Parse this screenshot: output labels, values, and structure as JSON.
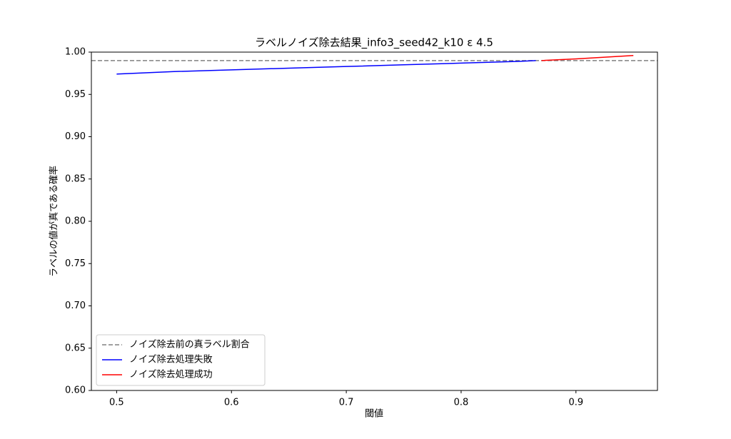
{
  "chart_data": {
    "type": "line",
    "title": "ラベルノイズ除去結果_info3_seed42_k10 ε 4.5",
    "xlabel": "閾値",
    "ylabel": "ラベルの値が真である確率",
    "x": [
      0.5,
      0.55,
      0.6,
      0.65,
      0.7,
      0.75,
      0.8,
      0.85,
      0.865,
      0.87,
      0.9,
      0.95
    ],
    "series": [
      {
        "name": "ノイズ除去処理失敗",
        "color": "#0000ff",
        "values": [
          0.974,
          0.977,
          0.979,
          0.981,
          0.983,
          0.985,
          0.987,
          0.989,
          0.99,
          null,
          null,
          null
        ]
      },
      {
        "name": "ノイズ除去処理成功",
        "color": "#ff0000",
        "values": [
          null,
          null,
          null,
          null,
          null,
          null,
          null,
          null,
          null,
          0.99,
          0.992,
          0.996
        ]
      }
    ],
    "reference_lines": [
      {
        "name": "ノイズ除去前の真ラベル割合",
        "value": 0.99,
        "color": "#808080",
        "style": "dashed"
      }
    ],
    "xlim": [
      0.478,
      0.971
    ],
    "ylim": [
      0.6,
      1.0
    ],
    "xticks": [
      0.5,
      0.6,
      0.7,
      0.8,
      0.9
    ],
    "yticks": [
      {
        "value": 0.6,
        "label": "0.60"
      },
      {
        "value": 0.65,
        "label": "0.65"
      },
      {
        "value": 0.7,
        "label": "0.70"
      },
      {
        "value": 0.75,
        "label": "0.75"
      },
      {
        "value": 0.8,
        "label": "0.80"
      },
      {
        "value": 0.85,
        "label": "0.85"
      },
      {
        "value": 0.9,
        "label": "0.90"
      },
      {
        "value": 0.95,
        "label": "0.95"
      },
      {
        "value": 1.0,
        "label": "1.00"
      }
    ],
    "legend": "lower left"
  }
}
